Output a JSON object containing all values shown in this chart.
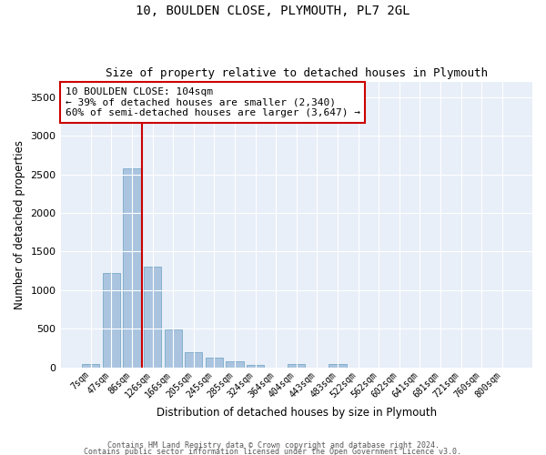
{
  "title": "10, BOULDEN CLOSE, PLYMOUTH, PL7 2GL",
  "subtitle": "Size of property relative to detached houses in Plymouth",
  "xlabel": "Distribution of detached houses by size in Plymouth",
  "ylabel": "Number of detached properties",
  "categories": [
    "7sqm",
    "47sqm",
    "86sqm",
    "126sqm",
    "166sqm",
    "205sqm",
    "245sqm",
    "285sqm",
    "324sqm",
    "364sqm",
    "404sqm",
    "443sqm",
    "483sqm",
    "522sqm",
    "562sqm",
    "602sqm",
    "641sqm",
    "681sqm",
    "721sqm",
    "760sqm",
    "800sqm"
  ],
  "values": [
    50,
    1220,
    2580,
    1300,
    490,
    200,
    130,
    85,
    30,
    0,
    50,
    0,
    50,
    0,
    0,
    0,
    0,
    0,
    0,
    0,
    0
  ],
  "bar_color": "#aac4e0",
  "bar_edgecolor": "#7aaac8",
  "vline_color": "#cc0000",
  "annotation_text": "10 BOULDEN CLOSE: 104sqm\n← 39% of detached houses are smaller (2,340)\n60% of semi-detached houses are larger (3,647) →",
  "annotation_box_color": "white",
  "annotation_box_edgecolor": "#cc0000",
  "ylim": [
    0,
    3700
  ],
  "yticks": [
    0,
    500,
    1000,
    1500,
    2000,
    2500,
    3000,
    3500
  ],
  "bg_color": "#e8eff8",
  "grid_color": "white",
  "footer1": "Contains HM Land Registry data © Crown copyright and database right 2024.",
  "footer2": "Contains public sector information licensed under the Open Government Licence v3.0."
}
